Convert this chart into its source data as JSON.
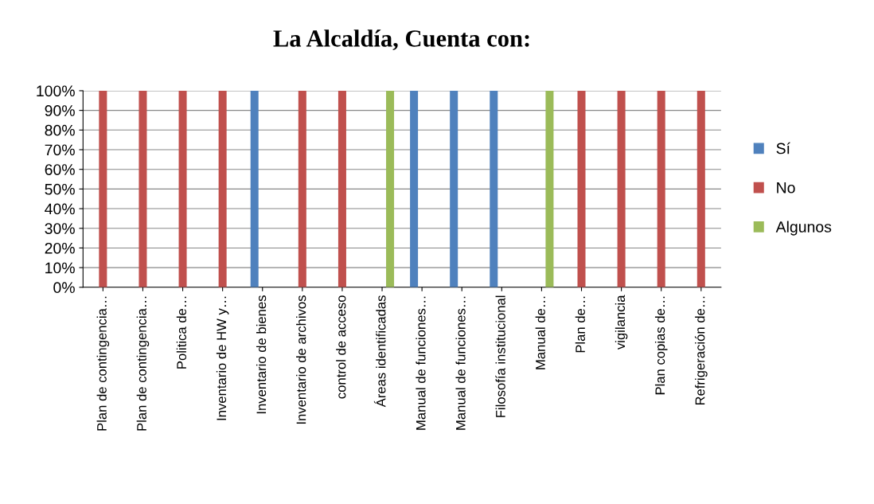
{
  "chart_data": {
    "type": "bar",
    "title": "La Alcaldía, Cuenta con:",
    "categories": [
      "Plan de contingencia…",
      "Plan de contingencia…",
      "Politica de…",
      "Inventario de HW y…",
      "Inventario de bienes",
      "Inventario de archivos",
      "control de acceso",
      "Áreas identificadas",
      "Manual de funciones…",
      "Manual de funciones…",
      "Filosofía institucional",
      "Manual de…",
      "Plan de…",
      "vigilancia",
      "Plan copias de…",
      "Refrigeración de…"
    ],
    "series": [
      {
        "name": "Sí",
        "color": "#4f81bd",
        "values": [
          0,
          0,
          0,
          0,
          100,
          0,
          0,
          0,
          100,
          100,
          100,
          0,
          0,
          0,
          0,
          0
        ]
      },
      {
        "name": "No",
        "color": "#c0504d",
        "values": [
          100,
          100,
          100,
          100,
          0,
          100,
          100,
          0,
          0,
          0,
          0,
          0,
          100,
          100,
          100,
          100
        ]
      },
      {
        "name": "Algunos",
        "color": "#9bbb59",
        "values": [
          0,
          0,
          0,
          0,
          0,
          0,
          0,
          100,
          0,
          0,
          0,
          100,
          0,
          0,
          0,
          0
        ]
      }
    ],
    "ylim": [
      0,
      100
    ],
    "yticks": [
      {
        "value": 0,
        "label": "0%"
      },
      {
        "value": 10,
        "label": "10%"
      },
      {
        "value": 20,
        "label": "20%"
      },
      {
        "value": 30,
        "label": "30%"
      },
      {
        "value": 40,
        "label": "40%"
      },
      {
        "value": 50,
        "label": "50%"
      },
      {
        "value": 60,
        "label": "60%"
      },
      {
        "value": 70,
        "label": "70%"
      },
      {
        "value": 80,
        "label": "80%"
      },
      {
        "value": 90,
        "label": "90%"
      },
      {
        "value": 100,
        "label": "100%"
      }
    ],
    "grid": "y",
    "legend": "right"
  }
}
